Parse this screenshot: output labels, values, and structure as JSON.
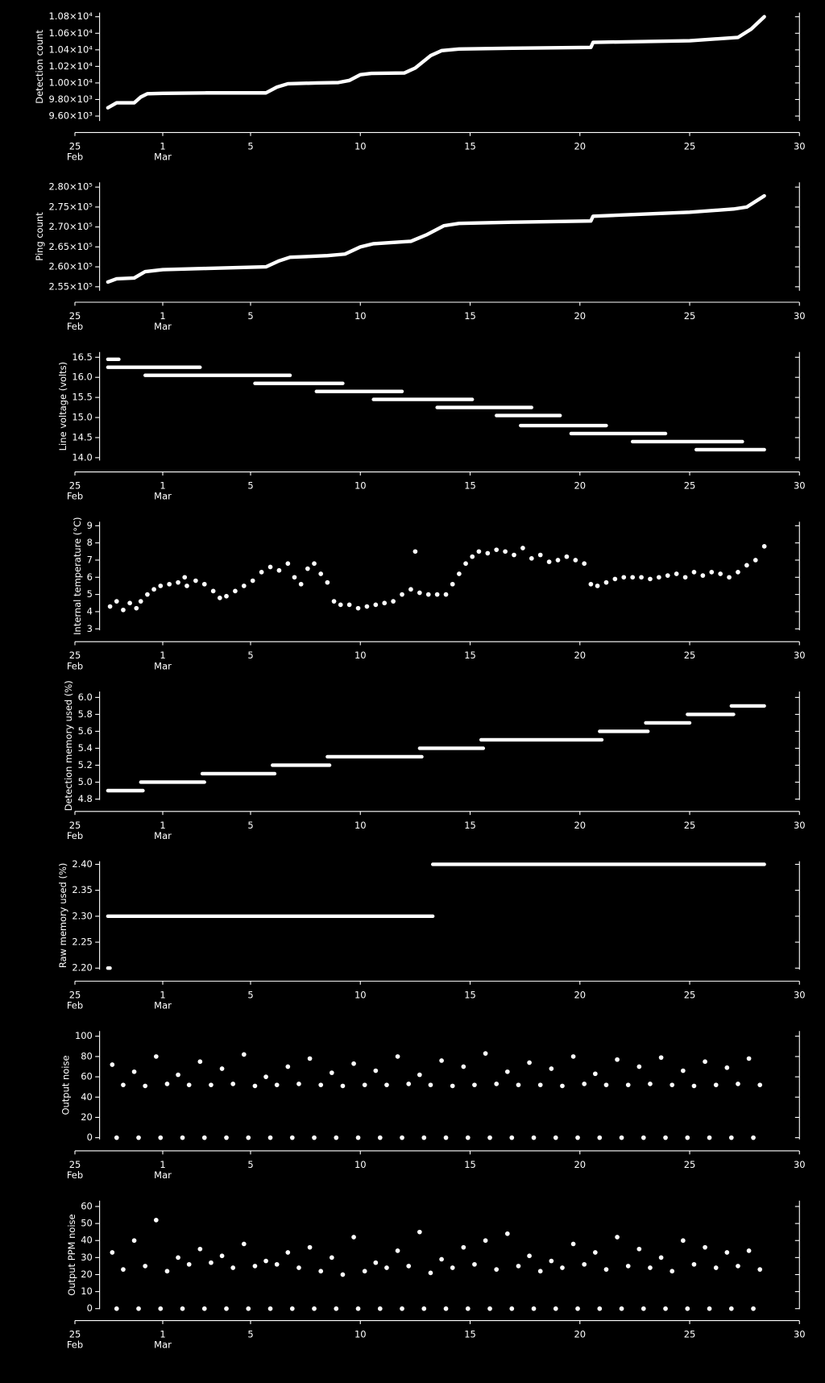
{
  "chart_data": [
    {
      "type": "line",
      "ylabel": "Detection count",
      "color": "#ffffff",
      "xlim": [
        25,
        58
      ],
      "xticks": [
        25,
        {
          "value": 29,
          "label": "1"
        },
        {
          "value": 33,
          "label": "5"
        },
        {
          "value": 38,
          "label": "10"
        },
        {
          "value": 43,
          "label": "15"
        },
        {
          "value": 48,
          "label": "20"
        },
        {
          "value": 53,
          "label": "25"
        },
        {
          "value": 58,
          "label": "30"
        }
      ],
      "xtick_months": [
        "Feb",
        "Mar"
      ],
      "ylim": [
        9540,
        10850
      ],
      "yticks": [
        {
          "value": 9600,
          "label": "9.60×10³"
        },
        {
          "value": 9800,
          "label": "9.80×10³"
        },
        {
          "value": 10000,
          "label": "1.00×10⁴"
        },
        {
          "value": 10200,
          "label": "1.02×10⁴"
        },
        {
          "value": 10400,
          "label": "1.04×10⁴"
        },
        {
          "value": 10600,
          "label": "1.06×10⁴"
        },
        {
          "value": 10800,
          "label": "1.08×10⁴"
        }
      ],
      "x": [
        26.5,
        26.9,
        27.7,
        28.0,
        28.3,
        29.0,
        31.0,
        33.7,
        34.2,
        34.7,
        36.0,
        37.0,
        37.5,
        38.0,
        38.5,
        40.0,
        40.5,
        41.2,
        41.7,
        42.5,
        45.0,
        48.5,
        48.6,
        53.0,
        55.2,
        55.8,
        56.4
      ],
      "values": [
        9700,
        9760,
        9760,
        9830,
        9870,
        9875,
        9880,
        9880,
        9950,
        9990,
        10000,
        10005,
        10030,
        10100,
        10115,
        10120,
        10180,
        10330,
        10390,
        10410,
        10420,
        10430,
        10490,
        10510,
        10550,
        10650,
        10800
      ]
    },
    {
      "type": "line",
      "ylabel": "Ping count",
      "color": "#ffffff",
      "xlim": [
        25,
        58
      ],
      "xticks": [
        25,
        {
          "value": 29,
          "label": "1"
        },
        {
          "value": 33,
          "label": "5"
        },
        {
          "value": 38,
          "label": "10"
        },
        {
          "value": 43,
          "label": "15"
        },
        {
          "value": 48,
          "label": "20"
        },
        {
          "value": 53,
          "label": "25"
        },
        {
          "value": 58,
          "label": "30"
        }
      ],
      "xtick_months": [
        "Feb",
        "Mar"
      ],
      "ylim": [
        254000,
        281200
      ],
      "yticks": [
        {
          "value": 255000,
          "label": "2.55×10⁵"
        },
        {
          "value": 260000,
          "label": "2.60×10⁵"
        },
        {
          "value": 265000,
          "label": "2.65×10⁵"
        },
        {
          "value": 270000,
          "label": "2.70×10⁵"
        },
        {
          "value": 275000,
          "label": "2.75×10⁵"
        },
        {
          "value": 280000,
          "label": "2.80×10⁵"
        }
      ],
      "x": [
        26.5,
        26.9,
        27.7,
        28.2,
        29.0,
        31.0,
        33.7,
        34.3,
        34.8,
        36.5,
        37.3,
        38.0,
        38.6,
        40.3,
        41.0,
        41.8,
        42.5,
        45.0,
        48.5,
        48.6,
        53.0,
        55.0,
        55.6,
        56.4
      ],
      "values": [
        256200,
        257000,
        257200,
        258800,
        259300,
        259600,
        260000,
        261500,
        262400,
        262800,
        263200,
        265000,
        265800,
        266400,
        268000,
        270300,
        270900,
        271200,
        271500,
        272700,
        273700,
        274500,
        275000,
        277800
      ]
    },
    {
      "type": "line",
      "ylabel": "Line voltage (volts)",
      "color": "#ffffff",
      "xlim": [
        25,
        58
      ],
      "xticks": [
        25,
        {
          "value": 29,
          "label": "1"
        },
        {
          "value": 33,
          "label": "5"
        },
        {
          "value": 38,
          "label": "10"
        },
        {
          "value": 43,
          "label": "15"
        },
        {
          "value": 48,
          "label": "20"
        },
        {
          "value": 53,
          "label": "25"
        },
        {
          "value": 58,
          "label": "30"
        }
      ],
      "xtick_months": [
        "Feb",
        "Mar"
      ],
      "ylim": [
        13.93,
        16.63
      ],
      "yticks": [
        {
          "value": 14,
          "label": "14.0"
        },
        14.5,
        {
          "value": 15,
          "label": "15.0"
        },
        15.5,
        {
          "value": 16,
          "label": "16.0"
        },
        16.5
      ],
      "x": [
        26.5,
        27.0,
        27.0,
        26.5,
        30.7,
        30.7,
        28.2,
        34.8,
        34.8,
        33.2,
        37.2,
        37.2,
        36.0,
        39.9,
        39.9,
        38.6,
        43.1,
        43.1,
        41.5,
        45.8,
        45.8,
        44.2,
        47.1,
        47.1,
        45.3,
        49.2,
        49.2,
        47.6,
        51.9,
        51.9,
        50.4,
        55.4,
        55.4,
        53.3,
        56.4
      ],
      "values": [
        16.45,
        16.45,
        null,
        16.25,
        16.25,
        null,
        16.05,
        16.05,
        null,
        15.85,
        15.85,
        null,
        15.65,
        15.65,
        null,
        15.45,
        15.45,
        null,
        15.25,
        15.25,
        null,
        15.05,
        15.05,
        null,
        14.8,
        14.8,
        null,
        14.6,
        14.6,
        null,
        14.4,
        14.4,
        null,
        14.2,
        14.2
      ]
    },
    {
      "type": "scatter",
      "ylabel": "Internal temperature (°C)",
      "color": "#ffffff",
      "xlim": [
        25,
        58
      ],
      "xticks": [
        25,
        {
          "value": 29,
          "label": "1"
        },
        {
          "value": 33,
          "label": "5"
        },
        {
          "value": 38,
          "label": "10"
        },
        {
          "value": 43,
          "label": "15"
        },
        {
          "value": 48,
          "label": "20"
        },
        {
          "value": 53,
          "label": "25"
        },
        {
          "value": 58,
          "label": "30"
        }
      ],
      "xtick_months": [
        "Feb",
        "Mar"
      ],
      "ylim": [
        2.92,
        9.23
      ],
      "yticks": [
        3,
        4,
        5,
        6,
        7,
        8,
        9
      ],
      "x": [
        26.6,
        26.9,
        27.2,
        27.5,
        27.8,
        28.0,
        28.3,
        28.6,
        28.9,
        29.3,
        29.7,
        30.0,
        30.1,
        30.5,
        30.9,
        31.3,
        31.6,
        31.9,
        32.3,
        32.7,
        33.1,
        33.5,
        33.9,
        34.3,
        34.7,
        35.0,
        35.3,
        35.6,
        35.9,
        36.2,
        36.5,
        36.8,
        37.1,
        37.5,
        37.9,
        38.3,
        38.7,
        39.1,
        39.5,
        39.9,
        40.3,
        40.5,
        40.7,
        41.1,
        41.5,
        41.9,
        42.2,
        42.5,
        42.8,
        43.1,
        43.4,
        43.8,
        44.2,
        44.6,
        45.0,
        45.4,
        45.8,
        46.2,
        46.6,
        47.0,
        47.4,
        47.8,
        48.2,
        48.5,
        48.8,
        49.2,
        49.6,
        50.0,
        50.4,
        50.8,
        51.2,
        51.6,
        52.0,
        52.4,
        52.8,
        53.2,
        53.6,
        54.0,
        54.4,
        54.8,
        55.2,
        55.6,
        56.0,
        56.4
      ],
      "values": [
        4.3,
        4.6,
        4.1,
        4.5,
        4.2,
        4.6,
        5.0,
        5.3,
        5.5,
        5.6,
        5.7,
        6.0,
        5.5,
        5.8,
        5.6,
        5.2,
        4.8,
        4.9,
        5.2,
        5.5,
        5.8,
        6.3,
        6.6,
        6.4,
        6.8,
        6.0,
        5.6,
        6.5,
        6.8,
        6.2,
        5.7,
        4.6,
        4.4,
        4.4,
        4.2,
        4.3,
        4.4,
        4.5,
        4.6,
        5.0,
        5.3,
        7.5,
        5.1,
        5.0,
        5.0,
        5.0,
        5.6,
        6.2,
        6.8,
        7.2,
        7.5,
        7.4,
        7.6,
        7.5,
        7.3,
        7.7,
        7.1,
        7.3,
        6.9,
        7.0,
        7.2,
        7.0,
        6.8,
        5.6,
        5.5,
        5.7,
        5.9,
        6.0,
        6.0,
        6.0,
        5.9,
        6.0,
        6.1,
        6.2,
        6.0,
        6.3,
        6.1,
        6.3,
        6.2,
        6.0,
        6.3,
        6.7,
        7.0,
        7.8
      ]
    },
    {
      "type": "line",
      "ylabel": "Detection memory used (%)",
      "color": "#ffffff",
      "xlim": [
        25,
        58
      ],
      "xticks": [
        25,
        {
          "value": 29,
          "label": "1"
        },
        {
          "value": 33,
          "label": "5"
        },
        {
          "value": 38,
          "label": "10"
        },
        {
          "value": 43,
          "label": "15"
        },
        {
          "value": 48,
          "label": "20"
        },
        {
          "value": 53,
          "label": "25"
        },
        {
          "value": 58,
          "label": "30"
        }
      ],
      "xtick_months": [
        "Feb",
        "Mar"
      ],
      "ylim": [
        4.79,
        6.07
      ],
      "yticks": [
        4.8,
        {
          "value": 5,
          "label": "5.0"
        },
        5.2,
        5.4,
        5.6,
        5.8,
        {
          "value": 6,
          "label": "6.0"
        }
      ],
      "x": [
        26.5,
        28.1,
        28.1,
        28.0,
        30.9,
        30.9,
        30.8,
        34.1,
        34.1,
        34.0,
        36.6,
        36.6,
        36.5,
        40.8,
        40.8,
        40.7,
        43.6,
        43.6,
        43.5,
        49.0,
        49.0,
        48.9,
        51.1,
        51.1,
        51.0,
        53.0,
        53.0,
        52.9,
        55.0,
        55.0,
        54.9,
        56.4
      ],
      "values": [
        4.9,
        4.9,
        null,
        5.0,
        5.0,
        null,
        5.1,
        5.1,
        null,
        5.2,
        5.2,
        null,
        5.3,
        5.3,
        null,
        5.4,
        5.4,
        null,
        5.5,
        5.5,
        null,
        5.6,
        5.6,
        null,
        5.7,
        5.7,
        null,
        5.8,
        5.8,
        null,
        5.9,
        5.9
      ]
    },
    {
      "type": "line",
      "ylabel": "Raw memory used (%)",
      "color": "#ffffff",
      "xlim": [
        25,
        58
      ],
      "xticks": [
        25,
        {
          "value": 29,
          "label": "1"
        },
        {
          "value": 33,
          "label": "5"
        },
        {
          "value": 38,
          "label": "10"
        },
        {
          "value": 43,
          "label": "15"
        },
        {
          "value": 48,
          "label": "20"
        },
        {
          "value": 53,
          "label": "25"
        },
        {
          "value": 58,
          "label": "30"
        }
      ],
      "xtick_months": [
        "Feb",
        "Mar"
      ],
      "ylim": [
        2.197,
        2.406
      ],
      "yticks": [
        {
          "value": 2.2,
          "label": "2.20"
        },
        2.25,
        {
          "value": 2.3,
          "label": "2.30"
        },
        2.35,
        {
          "value": 2.4,
          "label": "2.40"
        }
      ],
      "x": [
        26.5,
        26.6,
        26.6,
        26.5,
        41.3,
        41.3,
        41.3,
        56.4
      ],
      "values": [
        2.2,
        2.2,
        null,
        2.3,
        2.3,
        null,
        2.4,
        2.4
      ]
    },
    {
      "type": "scatter",
      "ylabel": "Output noise",
      "color": "#ffffff",
      "xlim": [
        25,
        58
      ],
      "xticks": [
        25,
        {
          "value": 29,
          "label": "1"
        },
        {
          "value": 33,
          "label": "5"
        },
        {
          "value": 38,
          "label": "10"
        },
        {
          "value": 43,
          "label": "15"
        },
        {
          "value": 48,
          "label": "20"
        },
        {
          "value": 53,
          "label": "25"
        },
        {
          "value": 58,
          "label": "30"
        }
      ],
      "xtick_months": [
        "Feb",
        "Mar"
      ],
      "ylim": [
        -1.7,
        105.2
      ],
      "yticks": [
        0,
        20,
        40,
        60,
        80,
        100
      ],
      "x": [
        26.7,
        27.7,
        28.7,
        29.7,
        30.7,
        31.7,
        32.7,
        33.7,
        34.7,
        35.7,
        36.7,
        37.7,
        38.7,
        39.7,
        40.7,
        41.7,
        42.7,
        43.7,
        44.7,
        45.7,
        46.7,
        47.7,
        48.7,
        49.7,
        50.7,
        51.7,
        52.7,
        53.7,
        54.7,
        55.7,
        27.2,
        28.2,
        29.2,
        30.2,
        31.2,
        32.2,
        33.2,
        34.2,
        35.2,
        36.2,
        37.2,
        38.2,
        39.2,
        40.2,
        41.2,
        42.2,
        43.2,
        44.2,
        45.2,
        46.2,
        47.2,
        48.2,
        49.2,
        50.2,
        51.2,
        52.2,
        53.2,
        54.2,
        55.2,
        56.2,
        26.9,
        27.9,
        28.9,
        29.9,
        30.9,
        31.9,
        32.9,
        33.9,
        34.9,
        35.9,
        36.9,
        37.9,
        38.9,
        39.9,
        40.9,
        41.9,
        42.9,
        43.9,
        44.9,
        45.9,
        46.9,
        47.9,
        48.9,
        49.9,
        50.9,
        51.9,
        52.9,
        53.9,
        54.9,
        55.9
      ],
      "values": [
        72,
        65,
        80,
        62,
        75,
        68,
        82,
        60,
        70,
        78,
        64,
        73,
        66,
        80,
        62,
        76,
        70,
        83,
        65,
        74,
        68,
        80,
        63,
        77,
        70,
        79,
        66,
        75,
        69,
        78,
        52,
        51,
        53,
        52,
        52,
        53,
        51,
        52,
        53,
        52,
        51,
        52,
        52,
        53,
        52,
        51,
        52,
        53,
        52,
        52,
        51,
        53,
        52,
        52,
        53,
        52,
        51,
        52,
        53,
        52,
        0,
        0,
        0,
        0,
        0,
        0,
        0,
        0,
        0,
        0,
        0,
        0,
        0,
        0,
        0,
        0,
        0,
        0,
        0,
        0,
        0,
        0,
        0,
        0,
        0,
        0,
        0,
        0,
        0,
        0
      ]
    },
    {
      "type": "scatter",
      "ylabel": "Output PPM noise",
      "color": "#ffffff",
      "xlim": [
        25,
        58
      ],
      "xticks": [
        25,
        {
          "value": 29,
          "label": "1"
        },
        {
          "value": 33,
          "label": "5"
        },
        {
          "value": 38,
          "label": "10"
        },
        {
          "value": 43,
          "label": "15"
        },
        {
          "value": 48,
          "label": "20"
        },
        {
          "value": 53,
          "label": "25"
        },
        {
          "value": 58,
          "label": "30"
        }
      ],
      "xtick_months": [
        "Feb",
        "Mar"
      ],
      "ylim": [
        -0.3,
        63.4
      ],
      "yticks": [
        0,
        10,
        20,
        30,
        40,
        50,
        60
      ],
      "x": [
        26.7,
        27.7,
        28.7,
        29.7,
        30.7,
        31.7,
        32.7,
        33.7,
        34.7,
        35.7,
        36.7,
        37.7,
        38.7,
        39.7,
        40.7,
        41.7,
        42.7,
        43.7,
        44.7,
        45.7,
        46.7,
        47.7,
        48.7,
        49.7,
        50.7,
        51.7,
        52.7,
        53.7,
        54.7,
        55.7,
        27.2,
        28.2,
        29.2,
        30.2,
        31.2,
        32.2,
        33.2,
        34.2,
        35.2,
        36.2,
        37.2,
        38.2,
        39.2,
        40.2,
        41.2,
        42.2,
        43.2,
        44.2,
        45.2,
        46.2,
        47.2,
        48.2,
        49.2,
        50.2,
        51.2,
        52.2,
        53.2,
        54.2,
        55.2,
        56.2,
        26.9,
        27.9,
        28.9,
        29.9,
        30.9,
        31.9,
        32.9,
        33.9,
        34.9,
        35.9,
        36.9,
        37.9,
        38.9,
        39.9,
        40.9,
        41.9,
        42.9,
        43.9,
        44.9,
        45.9,
        46.9,
        47.9,
        48.9,
        49.9,
        50.9,
        51.9,
        52.9,
        53.9,
        54.9,
        55.9
      ],
      "values": [
        33,
        40,
        52,
        30,
        35,
        31,
        38,
        28,
        33,
        36,
        30,
        42,
        27,
        34,
        45,
        29,
        36,
        40,
        44,
        31,
        28,
        38,
        33,
        42,
        35,
        30,
        40,
        36,
        33,
        34,
        23,
        25,
        22,
        26,
        27,
        24,
        25,
        26,
        24,
        22,
        20,
        22,
        24,
        25,
        21,
        24,
        26,
        23,
        25,
        22,
        24,
        26,
        23,
        25,
        24,
        22,
        26,
        24,
        25,
        23,
        0,
        0,
        0,
        0,
        0,
        0,
        0,
        0,
        0,
        0,
        0,
        0,
        0,
        0,
        0,
        0,
        0,
        0,
        0,
        0,
        0,
        0,
        0,
        0,
        0,
        0,
        0,
        0,
        0,
        0
      ]
    }
  ]
}
